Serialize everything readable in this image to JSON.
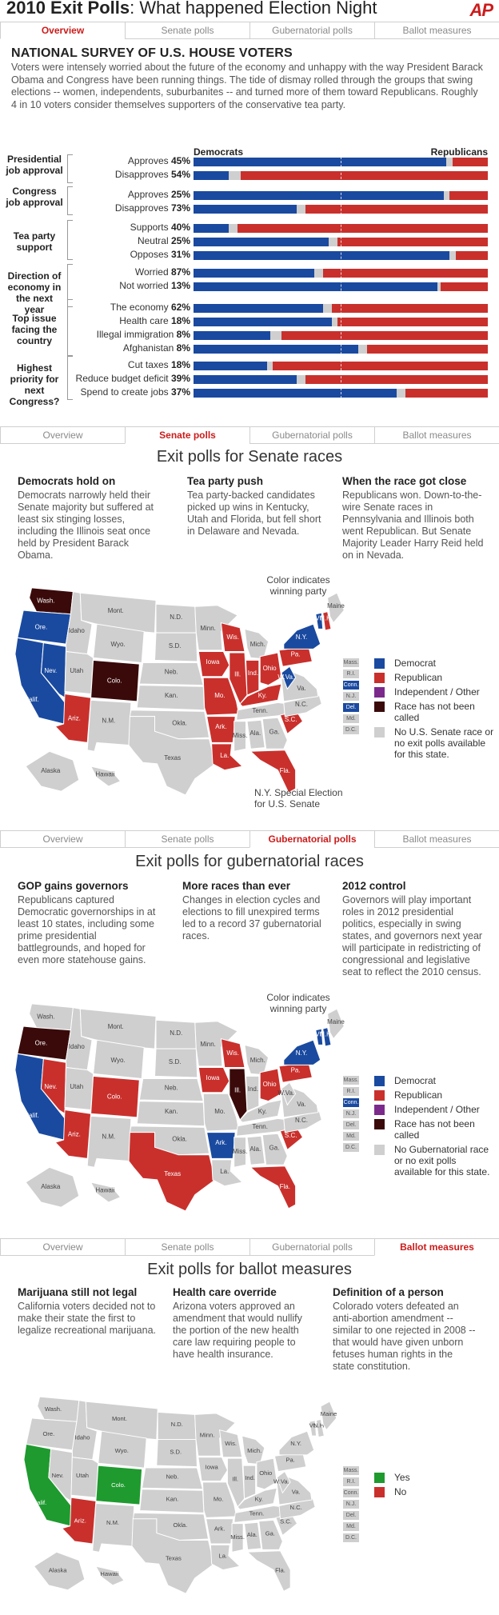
{
  "header": {
    "title_bold": "2010 Exit Polls",
    "title_rest": ": What happened Election Night",
    "logo": "AP"
  },
  "tabs": [
    "Overview",
    "Senate polls",
    "Gubernatorial polls",
    "Ballot measures"
  ],
  "overview": {
    "heading": "NATIONAL SURVEY OF U.S. HOUSE VOTERS",
    "intro": "Voters were intensely worried about the future of the economy and unhappy with the way President Barack Obama and Congress have been running things. The tide of dismay rolled through the groups that swing elections -- women, independents, suburbanites -- and turned more of them toward Republicans. Roughly 4 in 10 voters consider themselves supporters of the conservative tea party.",
    "dem_label": "Democrats",
    "rep_label": "Republicans",
    "groups": [
      {
        "label": "Presidential job approval",
        "rows": [
          {
            "label": "Approves",
            "pct": "45%",
            "dem": 0.86,
            "unk": 0.02
          },
          {
            "label": "Disapproves",
            "pct": "54%",
            "dem": 0.12,
            "unk": 0.04
          }
        ]
      },
      {
        "label": "Congress job approval",
        "rows": [
          {
            "label": "Approves",
            "pct": "25%",
            "dem": 0.85,
            "unk": 0.02
          },
          {
            "label": "Disapproves",
            "pct": "73%",
            "dem": 0.35,
            "unk": 0.03
          }
        ]
      },
      {
        "label": "Tea party support",
        "rows": [
          {
            "label": "Supports",
            "pct": "40%",
            "dem": 0.12,
            "unk": 0.03
          },
          {
            "label": "Neutral",
            "pct": "25%",
            "dem": 0.46,
            "unk": 0.03
          },
          {
            "label": "Opposes",
            "pct": "31%",
            "dem": 0.87,
            "unk": 0.02
          }
        ]
      },
      {
        "label": "Direction of economy in the next year",
        "rows": [
          {
            "label": "Worried",
            "pct": "87%",
            "dem": 0.41,
            "unk": 0.03
          },
          {
            "label": "Not worried",
            "pct": "13%",
            "dem": 0.83,
            "unk": 0.01
          }
        ]
      },
      {
        "label": "Top issue facing the country",
        "rows": [
          {
            "label": "The economy",
            "pct": "62%",
            "dem": 0.44,
            "unk": 0.03
          },
          {
            "label": "Health care",
            "pct": "18%",
            "dem": 0.47,
            "unk": 0.02
          },
          {
            "label": "Illegal immigration",
            "pct": "8%",
            "dem": 0.26,
            "unk": 0.04
          },
          {
            "label": "Afghanistan",
            "pct": "8%",
            "dem": 0.56,
            "unk": 0.03
          }
        ]
      },
      {
        "label": "Highest priority for next Congress?",
        "rows": [
          {
            "label": "Cut taxes",
            "pct": "18%",
            "dem": 0.25,
            "unk": 0.02
          },
          {
            "label": "Reduce budget deficit",
            "pct": "39%",
            "dem": 0.35,
            "unk": 0.03
          },
          {
            "label": "Spend to create jobs",
            "pct": "37%",
            "dem": 0.69,
            "unk": 0.03
          }
        ]
      }
    ]
  },
  "senate": {
    "title": "Exit polls for Senate races",
    "cols": [
      {
        "h": "Democrats hold on",
        "p": "Democrats narrowly held their Senate majority but suffered at least six stinging losses, including the Illinois seat once held by President Barack Obama."
      },
      {
        "h": "Tea party push",
        "p": "Tea party-backed candidates picked up wins in Kentucky, Utah and Florida, but fell short in Delaware and Nevada."
      },
      {
        "h": "When the race got close",
        "p": "Republicans won. Down-to-the-wire Senate races in Pennsylvania and Illinois both went Republican. But Senate Majority Leader Harry Reid held on in Nevada."
      }
    ],
    "map_note": "Color indicates winning party",
    "special_note": "N.Y. Special Election for U.S. Senate",
    "legend": [
      "Democrat",
      "Republican",
      "Independent / Other",
      "Race has not been called",
      "No U.S. Senate race or no exit polls available for this state."
    ]
  },
  "governor": {
    "title": "Exit polls for gubernatorial races",
    "cols": [
      {
        "h": "GOP gains governors",
        "p": "Republicans captured Democratic governorships in at least 10 states, including some prime presidential battlegrounds, and hoped for even more statehouse gains."
      },
      {
        "h": "More races than ever",
        "p": "Changes in election cycles and elections to fill unexpired terms led to a record 37 gubernatorial races."
      },
      {
        "h": "2012 control",
        "p": "Governors will play important roles in 2012 presidential politics, especially in swing states, and governors next year will participate in redistricting of congressional and legislative seat to reflect the 2010 census."
      }
    ],
    "map_note": "Color indicates winning party",
    "legend": [
      "Democrat",
      "Republican",
      "Independent / Other",
      "Race has not been called",
      "No Gubernatorial race or no exit polls available for this state."
    ]
  },
  "ballot": {
    "title": "Exit polls for ballot measures",
    "cols": [
      {
        "h": "Marijuana still not legal",
        "p": "California voters decided not to make their state the first to legalize recreational marijuana."
      },
      {
        "h": "Health care override",
        "p": "Arizona voters approved an amendment that would nullify the portion of the new health care law requiring people to have health insurance."
      },
      {
        "h": "Definition of a person",
        "p": "Colorado voters defeated an anti-abortion amendment -- similar to one rejected in 2008 -- that would have given unborn fetuses human rights in the state constitution."
      }
    ],
    "legend": [
      "Yes",
      "No"
    ]
  },
  "ne_labels": [
    "Mass.",
    "R.I.",
    "Conn.",
    "N.J.",
    "Del.",
    "Md.",
    "D.C."
  ],
  "colors": {
    "dem": "#1a4aa0",
    "rep": "#c9302c",
    "ind": "#7b2a8c",
    "uncalled": "#3a0a0a",
    "none": "#cfcfcf",
    "yes": "#1f9a2f",
    "no": "#c9302c",
    "accent": "#cc1b1b"
  }
}
